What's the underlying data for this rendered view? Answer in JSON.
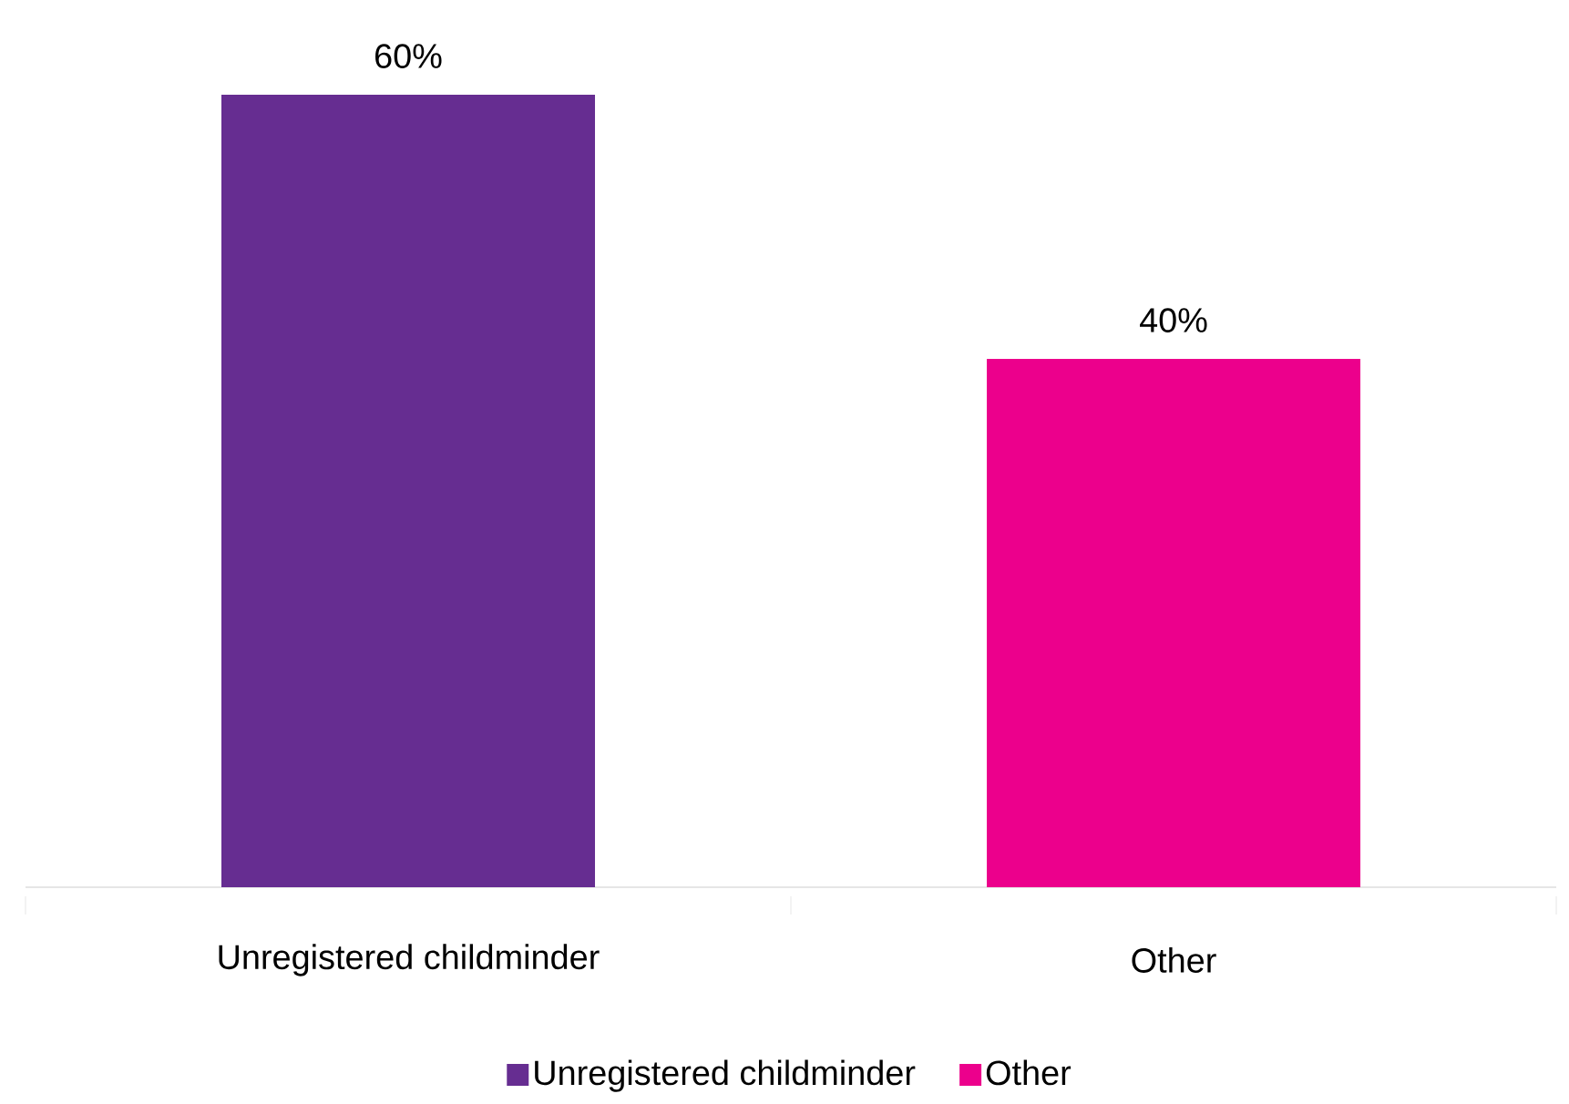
{
  "chart_data": {
    "type": "bar",
    "categories": [
      "Unregistered childminder",
      "Other"
    ],
    "series": [
      {
        "name": "Unregistered childminder",
        "color": "#662d91",
        "values": [
          60,
          null
        ],
        "value_labels": [
          "60%",
          null
        ]
      },
      {
        "name": "Other",
        "color": "#ec008c",
        "values": [
          null,
          40
        ],
        "value_labels": [
          null,
          "40%"
        ]
      }
    ],
    "legend": "bottom"
  }
}
